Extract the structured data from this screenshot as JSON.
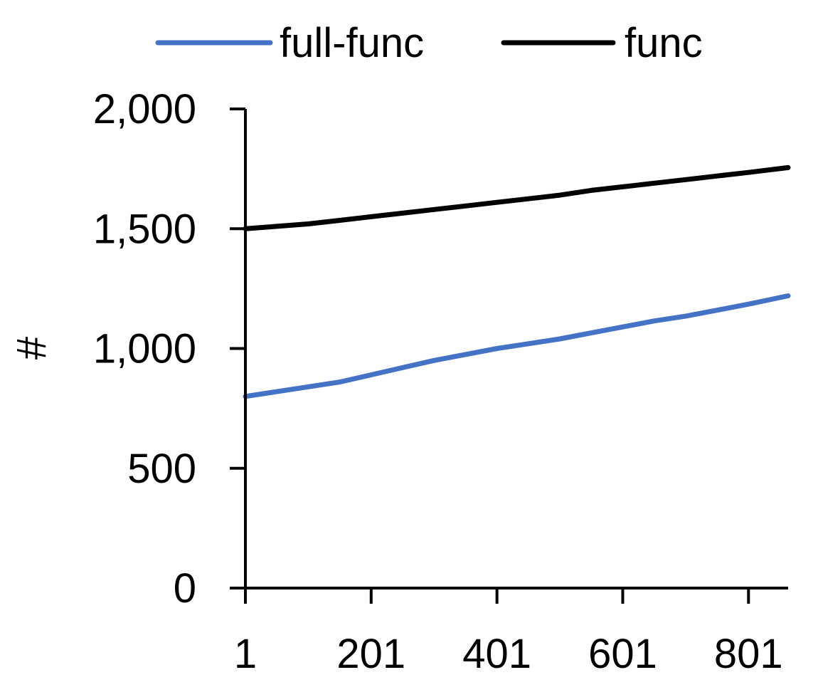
{
  "chart_data": {
    "type": "line",
    "title": "",
    "xlabel": "",
    "ylabel": "#",
    "xlim": [
      1,
      864
    ],
    "ylim": [
      0,
      2000
    ],
    "x_ticks": [
      1,
      201,
      401,
      601,
      801
    ],
    "x_tick_labels": [
      "1",
      "201",
      "401",
      "601",
      "801"
    ],
    "y_ticks": [
      0,
      500,
      1000,
      1500,
      2000
    ],
    "y_tick_labels": [
      "0",
      "500",
      "1,000",
      "1,500",
      "2,000"
    ],
    "grid": false,
    "legend": "top",
    "series": [
      {
        "name": "full-func",
        "color": "#4472C4",
        "x": [
          1,
          51,
          101,
          151,
          201,
          251,
          301,
          351,
          401,
          451,
          501,
          551,
          601,
          651,
          701,
          751,
          801,
          864
        ],
        "y": [
          800,
          820,
          840,
          860,
          890,
          920,
          950,
          975,
          1000,
          1020,
          1040,
          1065,
          1090,
          1115,
          1135,
          1160,
          1185,
          1220
        ]
      },
      {
        "name": "func",
        "color": "#000000",
        "x": [
          1,
          51,
          101,
          151,
          201,
          251,
          301,
          351,
          401,
          451,
          501,
          551,
          601,
          651,
          701,
          751,
          801,
          864
        ],
        "y": [
          1500,
          1510,
          1520,
          1535,
          1550,
          1565,
          1580,
          1595,
          1610,
          1625,
          1640,
          1660,
          1675,
          1690,
          1705,
          1720,
          1735,
          1755
        ]
      }
    ]
  }
}
